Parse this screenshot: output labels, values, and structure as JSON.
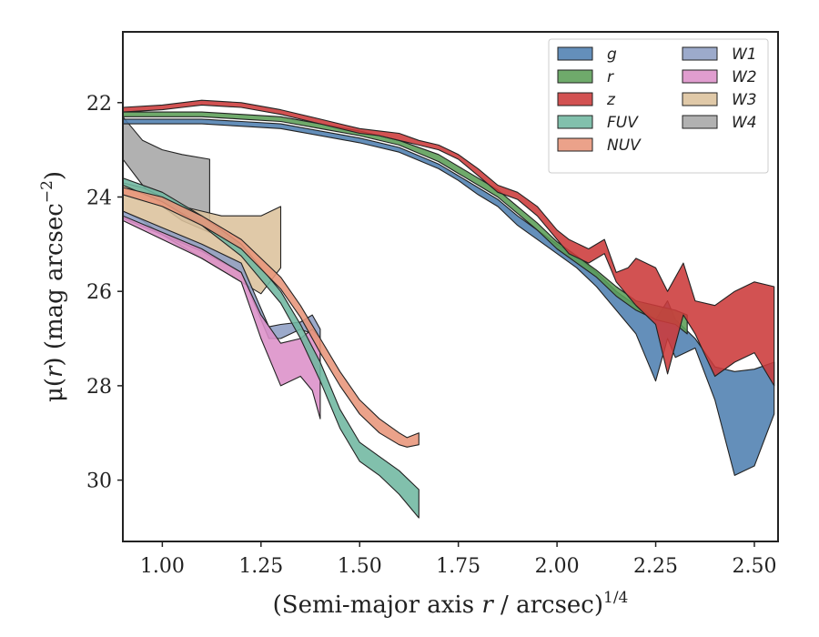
{
  "chart_data": {
    "type": "area",
    "xlabel": "(Semi-major axis r / arcsec)",
    "xlabel_parts": {
      "pre": "(Semi-major axis ",
      "var": "r",
      "post": " / arcsec)",
      "sup": "1/4"
    },
    "ylabel": "μ(r) (mag arcsec−2)",
    "ylabel_parts": {
      "pre": "μ(",
      "var": "r",
      "post": ") (mag arcsec",
      "sup": "−2",
      "close": ")"
    },
    "xlim": [
      0.9,
      2.56
    ],
    "ylim": [
      31.3,
      20.5
    ],
    "y_inverted": true,
    "xticks": [
      1.0,
      1.25,
      1.5,
      1.75,
      2.0,
      2.25,
      2.5
    ],
    "xtick_labels": [
      "1.00",
      "1.25",
      "1.50",
      "1.75",
      "2.00",
      "2.25",
      "2.50"
    ],
    "yticks": [
      22,
      24,
      26,
      28,
      30
    ],
    "ytick_labels": [
      "22",
      "24",
      "26",
      "28",
      "30"
    ],
    "grid": false,
    "legend": {
      "placement": "top-right",
      "columns": 2
    },
    "series": [
      {
        "name": "W4",
        "color": "#a6a6a6",
        "x": [
          0.9,
          0.95,
          1.0,
          1.05,
          1.12
        ],
        "lower": [
          22.3,
          22.8,
          23.0,
          23.1,
          23.2
        ],
        "upper": [
          23.2,
          23.75,
          24.2,
          24.5,
          24.75
        ]
      },
      {
        "name": "W3",
        "color": "#dcc19c",
        "x": [
          0.9,
          0.95,
          1.0,
          1.05,
          1.1,
          1.15,
          1.2,
          1.25,
          1.3
        ],
        "lower": [
          23.7,
          23.8,
          24.0,
          24.2,
          24.3,
          24.4,
          24.4,
          24.4,
          24.2
        ],
        "upper": [
          24.3,
          24.5,
          24.8,
          25.05,
          25.3,
          25.55,
          25.8,
          26.05,
          25.5
        ]
      },
      {
        "name": "W1",
        "color": "#8e9ec4",
        "x": [
          0.9,
          1.0,
          1.1,
          1.2,
          1.27,
          1.3,
          1.35,
          1.38,
          1.4
        ],
        "lower": [
          24.3,
          24.65,
          25.0,
          25.4,
          26.75,
          26.7,
          26.65,
          26.5,
          26.8
        ],
        "upper": [
          24.45,
          24.8,
          25.15,
          25.6,
          27.0,
          27.0,
          26.8,
          26.9,
          27.05
        ]
      },
      {
        "name": "W2",
        "color": "#dc8fc8",
        "x": [
          0.9,
          1.0,
          1.1,
          1.2,
          1.25,
          1.3,
          1.35,
          1.38,
          1.4
        ],
        "lower": [
          24.4,
          24.75,
          25.1,
          25.6,
          26.5,
          27.1,
          27.0,
          26.8,
          27.0
        ],
        "upper": [
          24.5,
          24.9,
          25.3,
          25.8,
          27.0,
          28.0,
          27.8,
          28.1,
          28.7
        ]
      },
      {
        "name": "FUV",
        "color": "#6fb7a0",
        "x": [
          0.9,
          1.0,
          1.1,
          1.2,
          1.3,
          1.35,
          1.4,
          1.45,
          1.5,
          1.55,
          1.6,
          1.65
        ],
        "lower": [
          23.6,
          23.9,
          24.4,
          25.0,
          26.0,
          26.7,
          27.5,
          28.5,
          29.2,
          29.5,
          29.8,
          30.2
        ],
        "upper": [
          23.75,
          24.1,
          24.6,
          25.25,
          26.25,
          27.0,
          27.9,
          28.9,
          29.6,
          29.9,
          30.3,
          30.8
        ]
      },
      {
        "name": "NUV",
        "color": "#e8957a",
        "x": [
          0.9,
          1.0,
          1.1,
          1.2,
          1.3,
          1.35,
          1.4,
          1.45,
          1.5,
          1.55,
          1.6,
          1.62,
          1.65
        ],
        "lower": [
          23.8,
          24.0,
          24.4,
          24.9,
          25.7,
          26.3,
          27.0,
          27.7,
          28.3,
          28.7,
          29.0,
          29.1,
          29.0
        ],
        "upper": [
          23.95,
          24.2,
          24.6,
          25.1,
          25.95,
          26.55,
          27.3,
          28.0,
          28.6,
          29.0,
          29.25,
          29.3,
          29.25
        ]
      },
      {
        "name": "g",
        "color": "#4f80b0",
        "x": [
          0.9,
          1.0,
          1.1,
          1.2,
          1.3,
          1.4,
          1.5,
          1.6,
          1.7,
          1.75,
          1.8,
          1.85,
          1.9,
          1.95,
          2.0,
          2.05,
          2.1,
          2.15,
          2.2,
          2.22,
          2.25,
          2.28,
          2.3,
          2.35,
          2.4,
          2.45,
          2.5,
          2.55
        ],
        "lower": [
          22.35,
          22.35,
          22.35,
          22.4,
          22.45,
          22.6,
          22.75,
          22.95,
          23.3,
          23.55,
          23.8,
          24.05,
          24.4,
          24.7,
          25.0,
          25.25,
          25.6,
          26.0,
          26.3,
          26.4,
          26.6,
          26.2,
          26.6,
          27.0,
          27.6,
          27.7,
          27.65,
          27.5
        ],
        "upper": [
          22.45,
          22.45,
          22.45,
          22.5,
          22.55,
          22.7,
          22.85,
          23.05,
          23.4,
          23.65,
          23.95,
          24.2,
          24.6,
          24.9,
          25.2,
          25.5,
          25.9,
          26.4,
          26.9,
          27.3,
          27.9,
          27.0,
          27.4,
          27.2,
          28.3,
          29.9,
          29.7,
          28.6
        ]
      },
      {
        "name": "r",
        "color": "#5b9e57",
        "x": [
          0.9,
          1.0,
          1.1,
          1.2,
          1.3,
          1.4,
          1.5,
          1.6,
          1.7,
          1.75,
          1.8,
          1.85,
          1.9,
          1.95,
          2.0,
          2.05,
          2.1,
          2.15,
          2.2,
          2.25,
          2.3,
          2.33
        ],
        "lower": [
          22.2,
          22.2,
          22.2,
          22.25,
          22.3,
          22.45,
          22.6,
          22.8,
          23.1,
          23.35,
          23.6,
          23.85,
          24.2,
          24.55,
          24.95,
          25.25,
          25.55,
          25.9,
          26.2,
          26.3,
          26.4,
          26.5
        ],
        "upper": [
          22.3,
          22.3,
          22.3,
          22.35,
          22.4,
          22.55,
          22.7,
          22.9,
          23.25,
          23.5,
          23.75,
          24.0,
          24.35,
          24.7,
          25.1,
          25.4,
          25.7,
          26.1,
          26.4,
          26.6,
          26.7,
          26.9
        ]
      },
      {
        "name": "z",
        "color": "#cc3a3a",
        "x": [
          0.9,
          1.0,
          1.05,
          1.1,
          1.2,
          1.3,
          1.4,
          1.5,
          1.55,
          1.6,
          1.65,
          1.7,
          1.75,
          1.8,
          1.85,
          1.9,
          1.95,
          2.0,
          2.03,
          2.08,
          2.12,
          2.15,
          2.18,
          2.2,
          2.25,
          2.28,
          2.32,
          2.35,
          2.4,
          2.45,
          2.5,
          2.55
        ],
        "lower": [
          22.1,
          22.05,
          22.0,
          21.95,
          22.0,
          22.15,
          22.35,
          22.55,
          22.6,
          22.65,
          22.8,
          22.9,
          23.1,
          23.4,
          23.75,
          23.9,
          24.2,
          24.7,
          24.9,
          25.1,
          24.9,
          25.6,
          25.5,
          25.3,
          25.5,
          26.0,
          25.4,
          26.2,
          26.3,
          26.0,
          25.8,
          25.9
        ],
        "upper": [
          22.2,
          22.15,
          22.1,
          22.05,
          22.1,
          22.25,
          22.45,
          22.65,
          22.7,
          22.8,
          22.9,
          23.0,
          23.2,
          23.55,
          23.9,
          24.05,
          24.4,
          24.9,
          25.2,
          25.4,
          25.2,
          25.8,
          26.1,
          26.3,
          26.7,
          27.75,
          26.5,
          26.9,
          27.8,
          27.5,
          27.3,
          28.0
        ]
      }
    ],
    "legend_entries": [
      "g",
      "r",
      "z",
      "FUV",
      "NUV",
      "W1",
      "W2",
      "W3",
      "W4"
    ]
  }
}
